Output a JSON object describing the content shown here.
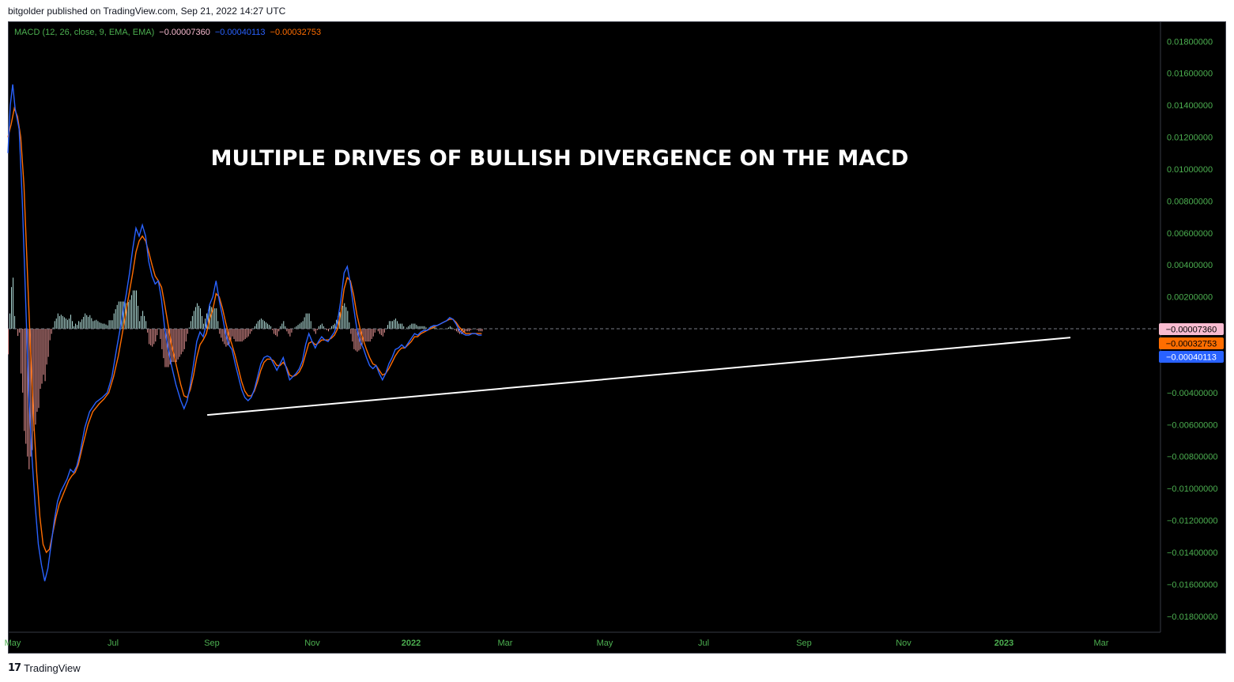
{
  "header": {
    "text": "bitgolder published on TradingView.com, Sep 21, 2022 14:27 UTC"
  },
  "legend": {
    "indicator": "MACD (12, 26, close, 9, EMA, EMA)",
    "histogram_value": "−0.00007360",
    "macd_value": "−0.00040113",
    "signal_value": "−0.00032753"
  },
  "annotation": {
    "text": "MULTIPLE DRIVES OF BULLISH DIVERGENCE ON THE MACD"
  },
  "footer": {
    "brand": "TradingView",
    "logo_glyph": "17"
  },
  "colors": {
    "background": "#000000",
    "macd": "#2962ff",
    "signal": "#ff6d00",
    "hist_pos": "#b2dfdb",
    "hist_neg": "#ef9a9a",
    "axis_text": "#4caf50",
    "trendline": "#ffffff"
  },
  "chart_data": {
    "type": "line",
    "x_tick_labels": [
      "May",
      "Jul",
      "Sep",
      "Nov",
      "2022",
      "Mar",
      "May",
      "Jul",
      "Sep",
      "Nov",
      "2023",
      "Mar"
    ],
    "y_tick_labels": [
      "0.01800000",
      "0.01600000",
      "0.01400000",
      "0.01200000",
      "0.01000000",
      "0.00800000",
      "0.00600000",
      "0.00400000",
      "0.00200000",
      "−0.00400000",
      "−0.00600000",
      "−0.00800000",
      "−0.01000000",
      "−0.01200000",
      "−0.01400000",
      "−0.01600000",
      "−0.01800000"
    ],
    "ylim": [
      -0.019,
      0.0192
    ],
    "x_range_days": [
      0,
      720
    ],
    "price_labels": [
      {
        "text": "−0.00007360",
        "value": -7.36e-05,
        "bg": "#f8bbd0",
        "fg": "#000000"
      },
      {
        "text": "−0.00032753",
        "value": -0.00032753,
        "bg": "#ff6d00",
        "fg": "#000000"
      },
      {
        "text": "−0.00040113",
        "value": -0.00040113,
        "bg": "#2962ff",
        "fg": "#ffffff"
      }
    ],
    "series": [
      {
        "key": "macd",
        "points": [
          [
            0,
            0.011
          ],
          [
            3,
            0.014
          ],
          [
            6,
            0.0153
          ],
          [
            9,
            0.0138
          ],
          [
            14,
            0.0125
          ],
          [
            18,
            0.008
          ],
          [
            22,
            0.002
          ],
          [
            26,
            -0.004
          ],
          [
            30,
            -0.008
          ],
          [
            34,
            -0.011
          ],
          [
            38,
            -0.0135
          ],
          [
            42,
            -0.0148
          ],
          [
            46,
            -0.0158
          ],
          [
            50,
            -0.015
          ],
          [
            54,
            -0.0135
          ],
          [
            58,
            -0.012
          ],
          [
            62,
            -0.0108
          ],
          [
            66,
            -0.0102
          ],
          [
            70,
            -0.0098
          ],
          [
            74,
            -0.0094
          ],
          [
            78,
            -0.0088
          ],
          [
            82,
            -0.009
          ],
          [
            86,
            -0.0086
          ],
          [
            90,
            -0.0078
          ],
          [
            96,
            -0.0062
          ],
          [
            102,
            -0.0052
          ],
          [
            110,
            -0.0046
          ],
          [
            118,
            -0.0043
          ],
          [
            124,
            -0.004
          ],
          [
            130,
            -0.003
          ],
          [
            136,
            -0.0012
          ],
          [
            142,
            0.0005
          ],
          [
            148,
            0.0022
          ],
          [
            152,
            0.0035
          ],
          [
            156,
            0.005
          ],
          [
            160,
            0.0063
          ],
          [
            164,
            0.0058
          ],
          [
            168,
            0.0065
          ],
          [
            172,
            0.0058
          ],
          [
            176,
            0.0042
          ],
          [
            180,
            0.0033
          ],
          [
            184,
            0.0028
          ],
          [
            188,
            0.003
          ],
          [
            192,
            0.0018
          ],
          [
            196,
            0.0
          ],
          [
            200,
            -0.0012
          ],
          [
            204,
            -0.0022
          ],
          [
            210,
            -0.0035
          ],
          [
            216,
            -0.0045
          ],
          [
            220,
            -0.005
          ],
          [
            224,
            -0.0045
          ],
          [
            228,
            -0.0035
          ],
          [
            232,
            -0.0022
          ],
          [
            236,
            -0.0008
          ],
          [
            240,
            -0.0002
          ],
          [
            244,
            -0.0005
          ],
          [
            248,
            0.0003
          ],
          [
            252,
            0.0015
          ],
          [
            256,
            0.002
          ],
          [
            260,
            0.003
          ],
          [
            264,
            0.0018
          ],
          [
            268,
            0.0008
          ],
          [
            272,
            -0.0003
          ],
          [
            276,
            -0.001
          ],
          [
            280,
            -0.0013
          ],
          [
            284,
            -0.0022
          ],
          [
            288,
            -0.003
          ],
          [
            292,
            -0.0038
          ],
          [
            296,
            -0.0043
          ],
          [
            300,
            -0.0045
          ],
          [
            304,
            -0.0043
          ],
          [
            308,
            -0.0038
          ],
          [
            312,
            -0.003
          ],
          [
            316,
            -0.0022
          ],
          [
            320,
            -0.0018
          ],
          [
            324,
            -0.0017
          ],
          [
            328,
            -0.0018
          ],
          [
            332,
            -0.0022
          ],
          [
            336,
            -0.0026
          ],
          [
            340,
            -0.0022
          ],
          [
            344,
            -0.0018
          ],
          [
            348,
            -0.0025
          ],
          [
            352,
            -0.0032
          ],
          [
            356,
            -0.003
          ],
          [
            360,
            -0.0028
          ],
          [
            364,
            -0.0025
          ],
          [
            368,
            -0.002
          ],
          [
            372,
            -0.001
          ],
          [
            376,
            -0.0003
          ],
          [
            380,
            -0.0008
          ],
          [
            384,
            -0.0012
          ],
          [
            388,
            -0.0008
          ],
          [
            392,
            -0.0005
          ],
          [
            396,
            -0.0007
          ],
          [
            400,
            -0.0008
          ],
          [
            404,
            -0.0005
          ],
          [
            408,
            -0.0002
          ],
          [
            412,
            0.0005
          ],
          [
            416,
            0.0018
          ],
          [
            420,
            0.0035
          ],
          [
            424,
            0.0039
          ],
          [
            428,
            0.0028
          ],
          [
            432,
            0.0013
          ],
          [
            436,
            0.0
          ],
          [
            440,
            -0.0008
          ],
          [
            444,
            -0.0012
          ],
          [
            448,
            -0.0018
          ],
          [
            452,
            -0.0023
          ],
          [
            456,
            -0.0025
          ],
          [
            460,
            -0.0023
          ],
          [
            464,
            -0.0028
          ],
          [
            468,
            -0.0032
          ],
          [
            472,
            -0.0028
          ],
          [
            476,
            -0.0022
          ],
          [
            480,
            -0.0018
          ],
          [
            484,
            -0.0013
          ],
          [
            488,
            -0.0012
          ],
          [
            492,
            -0.001
          ],
          [
            496,
            -0.0012
          ],
          [
            500,
            -0.0009
          ],
          [
            504,
            -0.0006
          ],
          [
            508,
            -0.0003
          ],
          [
            512,
            -0.0004
          ],
          [
            516,
            -0.0002
          ],
          [
            520,
            -0.0001
          ],
          [
            524,
            -0.0001
          ],
          [
            528,
            0.0001
          ],
          [
            532,
            0.0002
          ],
          [
            536,
            0.0002
          ],
          [
            540,
            0.0003
          ],
          [
            544,
            0.0004
          ],
          [
            548,
            0.0005
          ],
          [
            552,
            0.0007
          ],
          [
            556,
            0.0006
          ],
          [
            560,
            0.0003
          ],
          [
            564,
            -0.0001
          ],
          [
            568,
            -0.0003
          ],
          [
            572,
            -0.0004
          ],
          [
            576,
            -0.0004
          ],
          [
            580,
            -0.0003
          ],
          [
            584,
            -0.0003
          ],
          [
            588,
            -0.0004
          ],
          [
            592,
            -0.0004
          ]
        ]
      },
      {
        "key": "signal",
        "points": [
          [
            0,
            0.012
          ],
          [
            4,
            0.0128
          ],
          [
            8,
            0.0138
          ],
          [
            12,
            0.0133
          ],
          [
            16,
            0.012
          ],
          [
            20,
            0.009
          ],
          [
            24,
            0.004
          ],
          [
            28,
            -0.001
          ],
          [
            32,
            -0.0055
          ],
          [
            36,
            -0.009
          ],
          [
            40,
            -0.0118
          ],
          [
            44,
            -0.0135
          ],
          [
            48,
            -0.014
          ],
          [
            52,
            -0.0138
          ],
          [
            56,
            -0.0128
          ],
          [
            60,
            -0.0118
          ],
          [
            64,
            -0.011
          ],
          [
            68,
            -0.0105
          ],
          [
            72,
            -0.01
          ],
          [
            76,
            -0.0095
          ],
          [
            80,
            -0.0092
          ],
          [
            84,
            -0.009
          ],
          [
            88,
            -0.0085
          ],
          [
            94,
            -0.0072
          ],
          [
            100,
            -0.006
          ],
          [
            106,
            -0.0052
          ],
          [
            114,
            -0.0047
          ],
          [
            120,
            -0.0044
          ],
          [
            126,
            -0.004
          ],
          [
            132,
            -0.003
          ],
          [
            138,
            -0.0017
          ],
          [
            144,
            0.0
          ],
          [
            150,
            0.0018
          ],
          [
            156,
            0.0035
          ],
          [
            160,
            0.0048
          ],
          [
            164,
            0.0055
          ],
          [
            168,
            0.0058
          ],
          [
            172,
            0.0055
          ],
          [
            176,
            0.0048
          ],
          [
            180,
            0.004
          ],
          [
            184,
            0.0033
          ],
          [
            188,
            0.003
          ],
          [
            192,
            0.0026
          ],
          [
            196,
            0.0015
          ],
          [
            200,
            0.0003
          ],
          [
            204,
            -0.0009
          ],
          [
            210,
            -0.0022
          ],
          [
            216,
            -0.0035
          ],
          [
            220,
            -0.0042
          ],
          [
            224,
            -0.0043
          ],
          [
            228,
            -0.0038
          ],
          [
            232,
            -0.0029
          ],
          [
            236,
            -0.0018
          ],
          [
            240,
            -0.001
          ],
          [
            244,
            -0.0007
          ],
          [
            248,
            -0.0003
          ],
          [
            252,
            0.0006
          ],
          [
            256,
            0.0012
          ],
          [
            260,
            0.0022
          ],
          [
            264,
            0.002
          ],
          [
            268,
            0.0013
          ],
          [
            272,
            0.0004
          ],
          [
            276,
            -0.0004
          ],
          [
            280,
            -0.001
          ],
          [
            284,
            -0.0017
          ],
          [
            288,
            -0.0025
          ],
          [
            292,
            -0.0033
          ],
          [
            296,
            -0.0039
          ],
          [
            300,
            -0.0042
          ],
          [
            304,
            -0.0042
          ],
          [
            308,
            -0.0039
          ],
          [
            312,
            -0.0033
          ],
          [
            316,
            -0.0026
          ],
          [
            320,
            -0.0021
          ],
          [
            324,
            -0.0019
          ],
          [
            328,
            -0.0019
          ],
          [
            332,
            -0.002
          ],
          [
            336,
            -0.0023
          ],
          [
            340,
            -0.0023
          ],
          [
            344,
            -0.0021
          ],
          [
            348,
            -0.0024
          ],
          [
            352,
            -0.0029
          ],
          [
            356,
            -0.003
          ],
          [
            360,
            -0.0029
          ],
          [
            364,
            -0.0027
          ],
          [
            368,
            -0.0023
          ],
          [
            372,
            -0.0016
          ],
          [
            376,
            -0.0009
          ],
          [
            380,
            -0.0008
          ],
          [
            384,
            -0.001
          ],
          [
            388,
            -0.0009
          ],
          [
            392,
            -0.0007
          ],
          [
            396,
            -0.0007
          ],
          [
            400,
            -0.0007
          ],
          [
            404,
            -0.0006
          ],
          [
            408,
            -0.0004
          ],
          [
            412,
            0.0
          ],
          [
            416,
            0.001
          ],
          [
            420,
            0.0025
          ],
          [
            424,
            0.0032
          ],
          [
            428,
            0.003
          ],
          [
            432,
            0.0021
          ],
          [
            436,
            0.0009
          ],
          [
            440,
            0.0
          ],
          [
            444,
            -0.0007
          ],
          [
            448,
            -0.0013
          ],
          [
            452,
            -0.0018
          ],
          [
            456,
            -0.0022
          ],
          [
            460,
            -0.0023
          ],
          [
            464,
            -0.0026
          ],
          [
            468,
            -0.0029
          ],
          [
            472,
            -0.0028
          ],
          [
            476,
            -0.0025
          ],
          [
            480,
            -0.0021
          ],
          [
            484,
            -0.0017
          ],
          [
            488,
            -0.0014
          ],
          [
            492,
            -0.0012
          ],
          [
            496,
            -0.0012
          ],
          [
            500,
            -0.001
          ],
          [
            504,
            -0.0008
          ],
          [
            508,
            -0.0005
          ],
          [
            512,
            -0.0005
          ],
          [
            516,
            -0.0003
          ],
          [
            520,
            -0.0002
          ],
          [
            524,
            -0.0001
          ],
          [
            528,
            0.0
          ],
          [
            532,
            0.0001
          ],
          [
            536,
            0.0002
          ],
          [
            540,
            0.0003
          ],
          [
            544,
            0.0004
          ],
          [
            548,
            0.0005
          ],
          [
            552,
            0.0006
          ],
          [
            556,
            0.0006
          ],
          [
            560,
            0.0004
          ],
          [
            564,
            0.0001
          ],
          [
            568,
            -0.0001
          ],
          [
            572,
            -0.0003
          ],
          [
            576,
            -0.0003
          ],
          [
            580,
            -0.0003
          ],
          [
            584,
            -0.0003
          ],
          [
            588,
            -0.0003
          ],
          [
            592,
            -0.0003
          ]
        ]
      }
    ],
    "trendline": {
      "from": [
        166,
        -0.0054
      ],
      "to": [
        885,
        -0.00055
      ]
    }
  }
}
